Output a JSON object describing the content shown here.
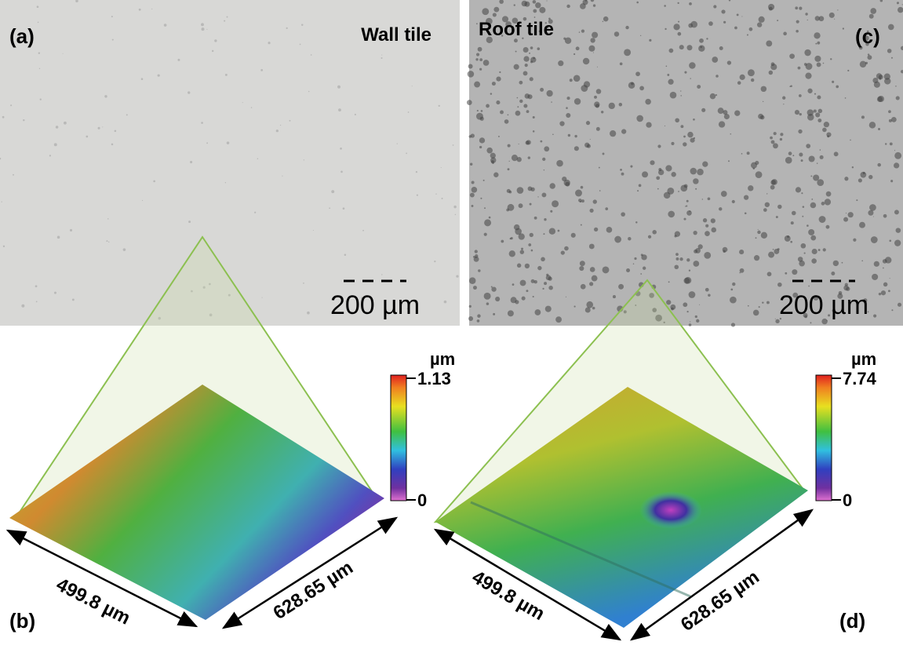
{
  "panels": [
    {
      "label": "(a)",
      "title": "Wall tile",
      "scale_bar": "200 µm"
    },
    {
      "label": "(b)",
      "colorbar": {
        "unit": "µm",
        "max": "1.13",
        "min": "0"
      },
      "dims": [
        "499.8 µm",
        "628.65 µm"
      ]
    },
    {
      "label": "(c)",
      "title": "Roof tile",
      "scale_bar": "200 µm"
    },
    {
      "label": "(d)",
      "colorbar": {
        "unit": "µm",
        "max": "7.74",
        "min": "0"
      },
      "dims": [
        "499.8 µm",
        "628.65 µm"
      ]
    }
  ]
}
